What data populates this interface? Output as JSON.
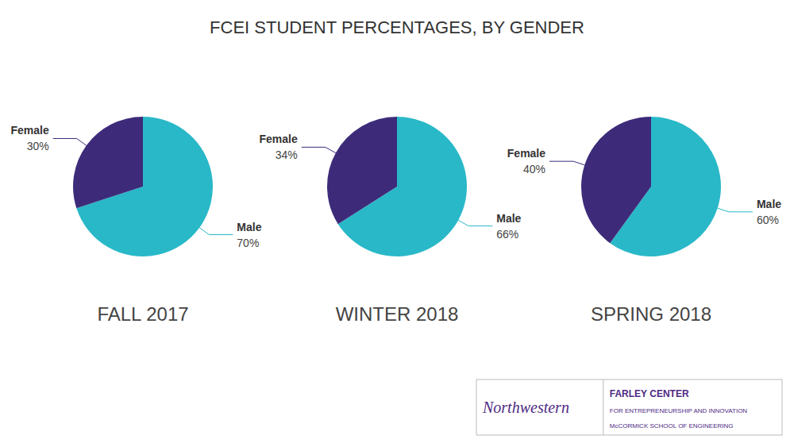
{
  "title": "FCEI STUDENT PERCENTAGES, BY GENDER",
  "chart_data": [
    {
      "type": "pie",
      "title": "FALL 2017",
      "categories": [
        "Male",
        "Female"
      ],
      "values": [
        70,
        30
      ],
      "value_labels": [
        "70%",
        "30%"
      ],
      "colors": [
        "#29b8c8",
        "#3d2b7a"
      ],
      "data_labels": true
    },
    {
      "type": "pie",
      "title": "WINTER 2018",
      "categories": [
        "Male",
        "Female"
      ],
      "values": [
        66,
        34
      ],
      "value_labels": [
        "66%",
        "34%"
      ],
      "colors": [
        "#29b8c8",
        "#3d2b7a"
      ],
      "data_labels": true
    },
    {
      "type": "pie",
      "title": "SPRING 2018",
      "categories": [
        "Male",
        "Female"
      ],
      "values": [
        60,
        40
      ],
      "value_labels": [
        "60%",
        "40%"
      ],
      "colors": [
        "#29b8c8",
        "#3d2b7a"
      ],
      "data_labels": true
    }
  ],
  "annotations": [
    {
      "text": "Northwestern",
      "color": "#4e2a84"
    },
    {
      "text": "FARLEY CENTER",
      "color": "#4e2a84"
    },
    {
      "text": "FOR ENTREPRENEURSHIP AND INNOVATION",
      "color": "#4e2a84"
    },
    {
      "text": "McCORMICK SCHOOL OF ENGINEERING",
      "color": "#4e2a84"
    }
  ]
}
